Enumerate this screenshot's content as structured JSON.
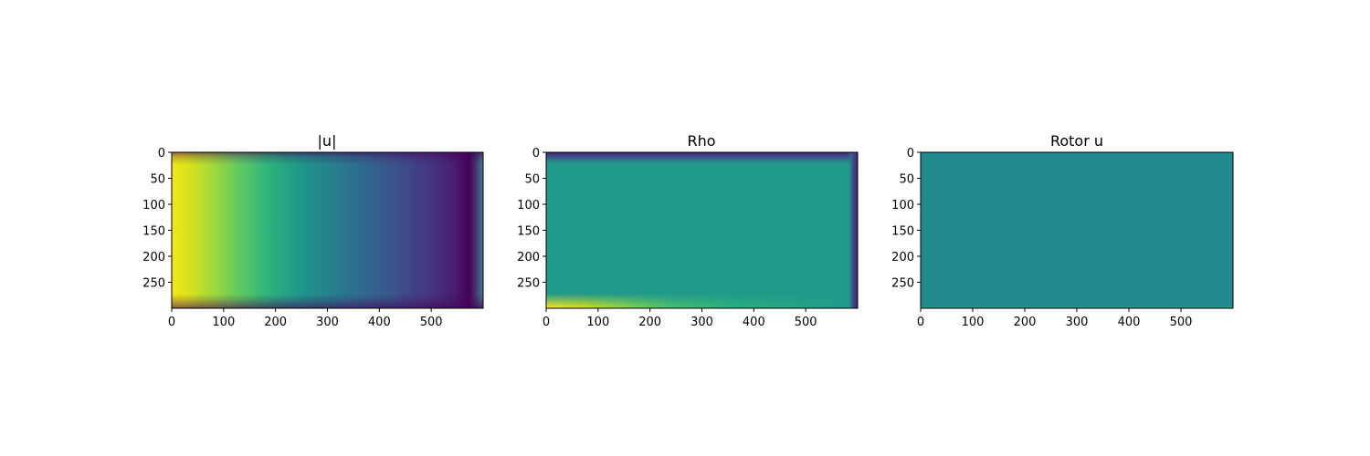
{
  "figure": {
    "background": "#ffffff",
    "colormap": "viridis",
    "colormap_stops": [
      "#440154",
      "#3b528b",
      "#21918c",
      "#5ec962",
      "#fde725"
    ]
  },
  "chart_data": [
    {
      "type": "heatmap",
      "title": "|u|",
      "xlabel": "",
      "ylabel": "",
      "xlim": [
        0,
        600
      ],
      "ylim": [
        300,
        0
      ],
      "xticks": [
        0,
        100,
        200,
        300,
        400,
        500
      ],
      "yticks": [
        0,
        50,
        100,
        150,
        200,
        250
      ],
      "grid": false,
      "colormap": "viridis",
      "description_field": "magnitude decreasing from left (max) to right (min), darker thin boundary layers near top and bottom walls",
      "x_profile": [
        {
          "x": 0,
          "v": 1.0
        },
        {
          "x": 50,
          "v": 0.88
        },
        {
          "x": 100,
          "v": 0.76
        },
        {
          "x": 150,
          "v": 0.66
        },
        {
          "x": 200,
          "v": 0.58
        },
        {
          "x": 250,
          "v": 0.51
        },
        {
          "x": 300,
          "v": 0.44
        },
        {
          "x": 350,
          "v": 0.37
        },
        {
          "x": 400,
          "v": 0.3
        },
        {
          "x": 450,
          "v": 0.22
        },
        {
          "x": 500,
          "v": 0.14
        },
        {
          "x": 560,
          "v": 0.04
        },
        {
          "x": 580,
          "v": 0.03
        },
        {
          "x": 590,
          "v": 0.2
        },
        {
          "x": 600,
          "v": 0.4
        }
      ]
    },
    {
      "type": "heatmap",
      "title": "Rho",
      "xlabel": "",
      "ylabel": "",
      "xlim": [
        0,
        600
      ],
      "ylim": [
        300,
        0
      ],
      "xticks": [
        0,
        100,
        200,
        300,
        400,
        500
      ],
      "yticks": [
        0,
        50,
        100,
        150,
        200,
        250
      ],
      "grid": false,
      "colormap": "viridis",
      "interior_value": 0.52,
      "top_edge_value": 0.05,
      "bottom_edge_value": 1.0,
      "right_edge_value": 0.1
    },
    {
      "type": "heatmap",
      "title": "Rotor u",
      "xlabel": "",
      "ylabel": "",
      "xlim": [
        0,
        600
      ],
      "ylim": [
        300,
        0
      ],
      "xticks": [
        0,
        100,
        200,
        300,
        400,
        500
      ],
      "yticks": [
        0,
        50,
        100,
        150,
        200,
        250
      ],
      "grid": false,
      "colormap": "viridis",
      "interior_value": 0.5
    }
  ]
}
